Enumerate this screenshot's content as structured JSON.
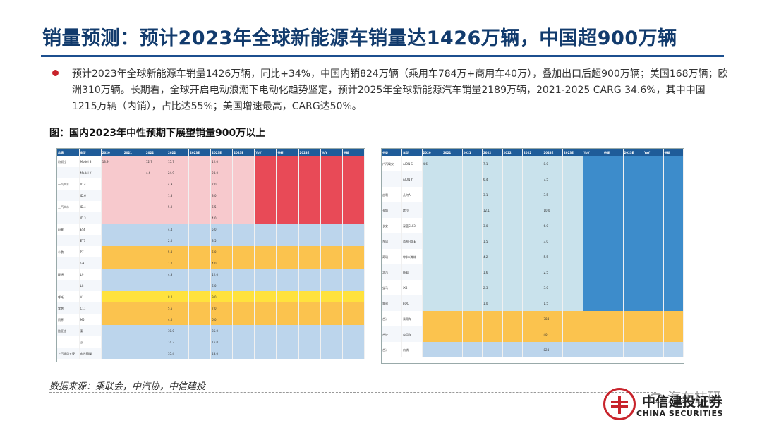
{
  "header": {
    "title": "销量预测：预计2023年全球新能源车销量达1426万辆，中国超900万辆"
  },
  "bullet": {
    "text": "预计2023年全球新能源车销量1426万辆，同比+34%，中国内销824万辆（乘用车784万+商用车40万），叠加出口后超900万辆；美国168万辆；欧洲310万辆。长期看，全球开启电动浪潮下电动化趋势坚定，预计2025年全球新能源汽车销量2189万辆，2021-2025 CARG 34.6%，其中中国1215万辆（内销），占比达55%；美国增速最高，CARG达50%。"
  },
  "figure": {
    "title": "图：国内2023年中性预期下展望销量900万以上"
  },
  "colors": {
    "title": "#123b6d",
    "rule": "#1c4f8f",
    "bullet": "#c8232b",
    "header": "#1f5c99",
    "pink": "#f7c9cd",
    "red": "#e84a57",
    "orange": "#fbc34e",
    "blue": "#3d8ccb",
    "light_blue": "#bcd5ec",
    "yellow": "#ffe23d",
    "teal": "#c9e2ec"
  },
  "source": {
    "text": "数据来源：乘联会，中汽协，中信建投"
  },
  "watermark": {
    "text": "汽车技研"
  },
  "logo": {
    "cn": "中信建投证券",
    "en": "CHINA SECURITIES"
  },
  "tables": {
    "left": {
      "headers": [
        "品牌",
        "车型",
        "2020",
        "2021",
        "2022",
        "2022",
        "2023E",
        "2023E",
        "2023E",
        "YoY",
        "份额",
        "2023E",
        "YoY",
        "份额"
      ],
      "rows": [
        [
          "特斯拉",
          "Model 3",
          "13.9",
          "",
          "12.7",
          "15.7",
          "",
          "12.0",
          "",
          "",
          "",
          "",
          "",
          ""
        ],
        [
          "",
          "Model Y",
          "",
          "",
          "4.6",
          "24.9",
          "",
          "28.0",
          "",
          "",
          "",
          "",
          "",
          ""
        ],
        [
          "一汽大众",
          "ID.4",
          "",
          "",
          "",
          "4.9",
          "",
          "7.0",
          "",
          "",
          "",
          "",
          "",
          ""
        ],
        [
          "",
          "ID.6",
          "",
          "",
          "",
          "1.8",
          "",
          "3.0",
          "",
          "",
          "",
          "",
          "",
          ""
        ],
        [
          "上汽大众",
          "ID.4",
          "",
          "",
          "",
          "5.0",
          "",
          "6.5",
          "",
          "",
          "",
          "",
          "",
          ""
        ],
        [
          "",
          "ID.3",
          "",
          "",
          "",
          "",
          "",
          "4.0",
          "",
          "",
          "",
          "",
          "",
          ""
        ],
        [
          "蔚来",
          "ES6",
          "",
          "",
          "",
          "4.4",
          "",
          "5.0",
          "",
          "",
          "",
          "",
          "",
          ""
        ],
        [
          "",
          "ET7",
          "",
          "",
          "",
          "2.0",
          "",
          "3.5",
          "",
          "",
          "",
          "",
          "",
          ""
        ],
        [
          "小鹏",
          "P7",
          "",
          "",
          "",
          "5.8",
          "",
          "6.0",
          "",
          "",
          "",
          "",
          "",
          ""
        ],
        [
          "",
          "G9",
          "",
          "",
          "",
          "1.2",
          "",
          "4.0",
          "",
          "",
          "",
          "",
          "",
          ""
        ],
        [
          "理想",
          "L9",
          "",
          "",
          "",
          "4.3",
          "",
          "12.0",
          "",
          "",
          "",
          "",
          "",
          ""
        ],
        [
          "",
          "L8",
          "",
          "",
          "",
          "",
          "",
          "6.0",
          "",
          "",
          "",
          "",
          "",
          ""
        ],
        [
          "哪吒",
          "V",
          "",
          "",
          "",
          "8.0",
          "",
          "9.0",
          "",
          "",
          "",
          "",
          "",
          ""
        ],
        [
          "零跑",
          "C11",
          "",
          "",
          "",
          "5.6",
          "",
          "7.0",
          "",
          "",
          "",
          "",
          "",
          ""
        ],
        [
          "问界",
          "M5",
          "",
          "",
          "",
          "4.0",
          "",
          "6.0",
          "",
          "",
          "",
          "",
          "",
          ""
        ],
        [
          "比亚迪",
          "秦",
          "",
          "",
          "",
          "30.0",
          "",
          "35.0",
          "",
          "",
          "",
          "",
          "",
          ""
        ],
        [
          "",
          "汉",
          "",
          "",
          "",
          "14.3",
          "",
          "16.0",
          "",
          "",
          "",
          "",
          "",
          ""
        ],
        [
          "上汽通用五菱",
          "宏光MINI",
          "",
          "",
          "",
          "55.4",
          "",
          "48.0",
          "",
          "",
          "",
          "",
          "",
          ""
        ]
      ]
    },
    "right": {
      "headers": [
        "分类",
        "车型",
        "2020",
        "2021",
        "2021",
        "2022",
        "2022",
        "2022",
        "2023E",
        "2023E",
        "YoY",
        "份额",
        "2023E",
        "YoY",
        "份额"
      ],
      "rows": [
        [
          "广汽埃安",
          "AION S",
          "4.6",
          "",
          "",
          "7.1",
          "",
          "",
          "8.0",
          "",
          "",
          "",
          "",
          "",
          ""
        ],
        [
          "",
          "AION Y",
          "",
          "",
          "",
          "6.4",
          "",
          "",
          "7.5",
          "",
          "",
          "",
          "",
          "",
          ""
        ],
        [
          "吉利",
          "几何A",
          "",
          "",
          "",
          "3.1",
          "",
          "",
          "3.5",
          "",
          "",
          "",
          "",
          "",
          ""
        ],
        [
          "长城",
          "欧拉",
          "",
          "",
          "",
          "12.1",
          "",
          "",
          "10.0",
          "",
          "",
          "",
          "",
          "",
          ""
        ],
        [
          "长安",
          "深蓝SL03",
          "",
          "",
          "",
          "3.0",
          "",
          "",
          "6.0",
          "",
          "",
          "",
          "",
          "",
          ""
        ],
        [
          "东风",
          "岚图FREE",
          "",
          "",
          "",
          "1.5",
          "",
          "",
          "3.0",
          "",
          "",
          "",
          "",
          "",
          ""
        ],
        [
          "奇瑞",
          "QQ冰淇淋",
          "",
          "",
          "",
          "4.2",
          "",
          "",
          "5.5",
          "",
          "",
          "",
          "",
          "",
          ""
        ],
        [
          "北汽",
          "极狐",
          "",
          "",
          "",
          "1.6",
          "",
          "",
          "2.5",
          "",
          "",
          "",
          "",
          "",
          ""
        ],
        [
          "宝马",
          "iX3",
          "",
          "",
          "",
          "2.3",
          "",
          "",
          "3.0",
          "",
          "",
          "",
          "",
          "",
          ""
        ],
        [
          "奔驰",
          "EQC",
          "",
          "",
          "",
          "1.0",
          "",
          "",
          "1.5",
          "",
          "",
          "",
          "",
          "",
          ""
        ],
        [
          "合计",
          "乘用车",
          "",
          "",
          "",
          "",
          "",
          "",
          "784",
          "",
          "",
          "",
          "",
          "",
          ""
        ],
        [
          "合计",
          "商用车",
          "",
          "",
          "",
          "",
          "",
          "",
          "40",
          "",
          "",
          "",
          "",
          "",
          ""
        ],
        [
          "合计",
          "内销",
          "",
          "",
          "",
          "",
          "",
          "",
          "824",
          "",
          "",
          "",
          "",
          "",
          ""
        ]
      ]
    }
  }
}
